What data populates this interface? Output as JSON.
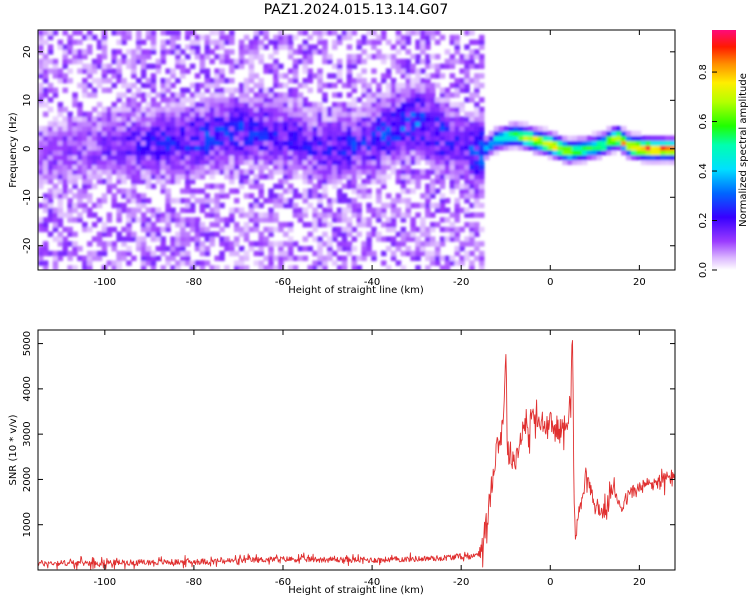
{
  "title": "PAZ1.2024.015.13.14.G07",
  "chart_data": [
    {
      "type": "heatmap",
      "xlabel": "Height of straight line (km)",
      "ylabel": "Frequency (Hz)",
      "xlim": [
        -115,
        28
      ],
      "ylim": [
        -25,
        24.5
      ],
      "xticks": [
        -100,
        -80,
        -60,
        -40,
        -20,
        0,
        20
      ],
      "yticks": [
        -20,
        -10,
        0,
        10,
        20
      ],
      "xtick_labels": [
        "-100",
        "-80",
        "-60",
        "-40",
        "-20",
        "0",
        "20"
      ],
      "ytick_labels": [
        "-20",
        "-10",
        "0",
        "10",
        "20"
      ],
      "colorbar": {
        "label": "Normalized spectral amplitude",
        "range": [
          0,
          0.97
        ],
        "ticks": [
          0.0,
          0.2,
          0.4,
          0.6,
          0.8
        ],
        "tick_labels": [
          "0.0",
          "0.2",
          "0.4",
          "0.6",
          "0.8"
        ],
        "colormap": "rainbow (white at 0, violet, blue, cyan, green, yellow, orange, red, magenta at max)"
      },
      "signal_track": {
        "description": "coherent signal frequency trace vs height",
        "x": [
          -115,
          -100,
          -90,
          -80,
          -70,
          -60,
          -50,
          -40,
          -35,
          -30,
          -25,
          -20,
          -16,
          -12,
          -8,
          -4,
          0,
          4,
          8,
          12,
          15,
          18,
          22,
          28
        ],
        "freq": [
          -1,
          1,
          1,
          2,
          4,
          3,
          0,
          2,
          4,
          6,
          3,
          0,
          -1,
          2,
          3,
          2,
          1,
          -0.5,
          0,
          1,
          2.5,
          0.5,
          0,
          0
        ],
        "peak_amplitude": [
          0.1,
          0.15,
          0.2,
          0.25,
          0.25,
          0.2,
          0.2,
          0.25,
          0.25,
          0.3,
          0.25,
          0.2,
          0.3,
          0.45,
          0.6,
          0.75,
          0.8,
          0.7,
          0.55,
          0.6,
          0.75,
          0.85,
          0.9,
          0.8
        ]
      },
      "noise_region_x": [
        -115,
        -15
      ],
      "noise_level": 0.1
    },
    {
      "type": "line",
      "xlabel": "Height of straight line (km)",
      "ylabel": "SNR (10 * v/v)",
      "xlim": [
        -115,
        28
      ],
      "ylim": [
        0,
        5300
      ],
      "xticks": [
        -100,
        -80,
        -60,
        -40,
        -20,
        0,
        20
      ],
      "yticks": [
        1000,
        2000,
        3000,
        4000,
        5000
      ],
      "xtick_labels": [
        "-100",
        "-80",
        "-60",
        "-40",
        "-20",
        "0",
        "20"
      ],
      "ytick_labels": [
        "1000",
        "2000",
        "3000",
        "4000",
        "5000"
      ],
      "series": [
        {
          "color": "#e03030",
          "x": [
            -115,
            -100,
            -80,
            -60,
            -40,
            -25,
            -20,
            -17,
            -15.5,
            -14,
            -13,
            -12,
            -11,
            -10.5,
            -10,
            -9.5,
            -9,
            -8,
            -7,
            -6,
            -5,
            -4,
            -3,
            -2,
            -1,
            0,
            1,
            2,
            3,
            4,
            4.6,
            5,
            5.3,
            5.6,
            6,
            7,
            8,
            10,
            12,
            14,
            16,
            18,
            20,
            22,
            24,
            26,
            28
          ],
          "y": [
            150,
            160,
            180,
            240,
            220,
            260,
            300,
            300,
            500,
            1200,
            2000,
            2800,
            2900,
            3500,
            4800,
            2400,
            2600,
            2400,
            2700,
            3300,
            2900,
            3500,
            3200,
            3300,
            3100,
            3250,
            3100,
            3050,
            3150,
            3400,
            3800,
            5300,
            1800,
            700,
            1000,
            1600,
            2150,
            1400,
            1250,
            1800,
            1400,
            1700,
            1800,
            1900,
            1950,
            2000,
            2100
          ]
        }
      ]
    }
  ]
}
